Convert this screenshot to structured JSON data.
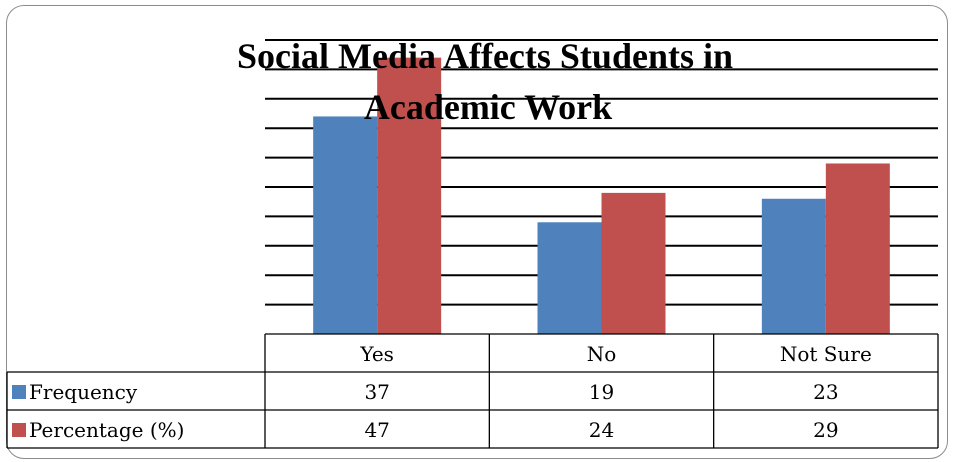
{
  "chart_data": {
    "type": "bar",
    "title_lines": [
      "Social Media Affects Students in",
      "Academic Work"
    ],
    "categories": [
      "Yes",
      "No",
      "Not Sure"
    ],
    "series": [
      {
        "name": "Frequency",
        "values": [
          37,
          19,
          23
        ],
        "color": "#4F81BD"
      },
      {
        "name": "Percentage (%)",
        "values": [
          47,
          24,
          29
        ],
        "color": "#C0504D"
      }
    ],
    "ylim": [
      0,
      50
    ],
    "y_major_unit": 5,
    "grid": true,
    "legend": "data-table",
    "show_data_table": true
  }
}
